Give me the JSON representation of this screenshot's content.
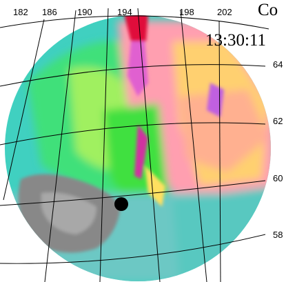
{
  "title": "Co",
  "time": "13:30:11",
  "longitude_labels": [
    182,
    186,
    190,
    194,
    198,
    202
  ],
  "latitude_labels": [
    64,
    62,
    60,
    58
  ]
}
